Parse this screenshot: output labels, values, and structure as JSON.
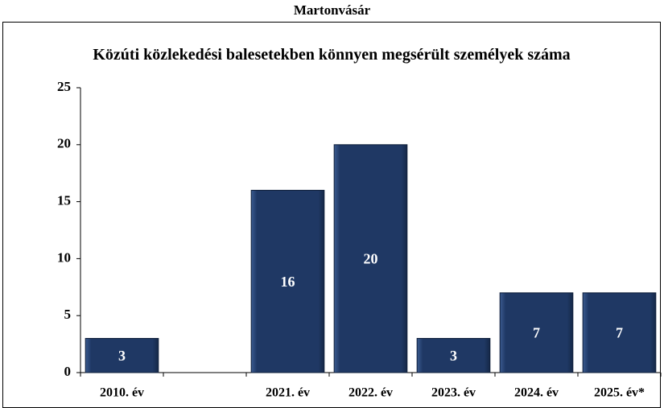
{
  "header": {
    "title": "Martonvásár"
  },
  "chart_data": {
    "type": "bar",
    "title": "Közúti közlekedési balesetekben könnyen megsérült személyek száma",
    "categories": [
      "2010. év",
      null,
      "2021. év",
      "2022. év",
      "2023. év",
      "2024. év",
      "2025. év*"
    ],
    "values": [
      3,
      null,
      16,
      20,
      3,
      7,
      7
    ],
    "color": "#1f3864",
    "ylim": [
      0,
      25
    ],
    "yticks": [
      0,
      5,
      10,
      15,
      20,
      25
    ],
    "grid": false
  }
}
